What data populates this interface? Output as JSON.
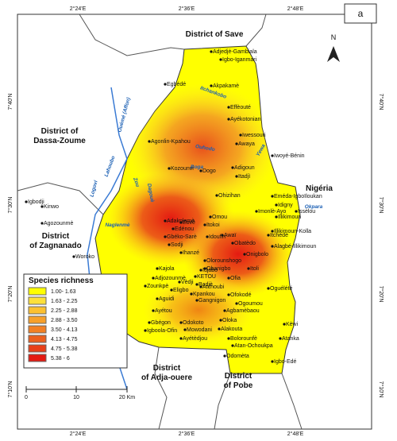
{
  "panel_label": "a",
  "north": "N",
  "coords": {
    "top": [
      "2°24'E",
      "2°36'E",
      "2°48'E"
    ],
    "bottom": [
      "2°24'E",
      "2°36'E",
      "2°48'E"
    ],
    "left": [
      "7°40'N",
      "7°30'N",
      "7°20'N",
      "7°10'N"
    ],
    "right": [
      "7°40'N",
      "7°30'N",
      "7°20'N",
      "7°10'N"
    ]
  },
  "districts": {
    "save": "District of Save",
    "dassa": [
      "District  of",
      "Dassa-Zoume"
    ],
    "zagnanado": [
      "District",
      "of Zagnanado"
    ],
    "adja": [
      "District",
      "of Adja-ouere"
    ],
    "pobe": [
      "District",
      "of Pobe"
    ]
  },
  "country": "Nigéria",
  "rivers": [
    "Ouémé (Affon)",
    "Itchankobo",
    "Ouhodo",
    "Boga",
    "Lahoubo",
    "Zou",
    "Logovi",
    "Dagouè",
    "Naglenmè",
    "Yewa",
    "Okpara"
  ],
  "villages": [
    "Adjedjè-Gambiala",
    "Igbo-Iganmari",
    "Egbédé",
    "Akpakamè",
    "Effèouté",
    "Ayékotonian",
    "Iwessouri",
    "Awaya",
    "Agonlin-Kpahou",
    "Kozounvi",
    "Dogo",
    "Adigoun",
    "Itadjì",
    "Iwoyé-Bénin",
    "Ohizihan",
    "Eméda-Igboïloukan",
    "Idigny",
    "Issèlou",
    "Igbodji",
    "Kinwo",
    "Agozounmè",
    "Adakplamè",
    "Eovè",
    "Edénou",
    "Omou",
    "Itokoi",
    "Imonlè-Ayo",
    "Illikimoun",
    "Illikimoun-Kolla",
    "Gbéko-Sarè",
    "Sodji",
    "Idoufin",
    "Awaï",
    "Obatèdo",
    "Itchèdè",
    "Alagbé-Illikimoun",
    "Ihanzé",
    "Onigbolo",
    "Woroko",
    "Olorounshogo",
    "Obanigbo",
    "Itoli",
    "Ofia",
    "Kajola",
    "Idjabo",
    "Adjozounmè",
    "KETOU",
    "Badjè",
    "Oguélété",
    "Zounkpè",
    "Eligbo",
    "Vèdji",
    "Atchoubi",
    "Kpankou",
    "Gangnigon",
    "Ofokodé",
    "Ogoumou",
    "Aguidi",
    "Agbamèbaou",
    "Ayétou",
    "Gbégon",
    "Odokoto",
    "Oloka",
    "Igboola-Ofin",
    "Mowodani",
    "Alakouta",
    "Ayétèdjou",
    "Kèwi",
    "Atanka",
    "Bolorounfè",
    "Atan-Ochoukpa",
    "Igbo-Edé",
    "Odomèta"
  ],
  "legend": {
    "title": "Species richness",
    "items": [
      {
        "label": "1.00- 1.63",
        "color": "#ffff00"
      },
      {
        "label": "1.63 - 2.25",
        "color": "#fde03a"
      },
      {
        "label": "2.25 - 2.88",
        "color": "#fcc030"
      },
      {
        "label": "2.88 - 3.50",
        "color": "#f7a02a"
      },
      {
        "label": "3.50 - 4.13",
        "color": "#f28024"
      },
      {
        "label": "4.13 - 4.75",
        "color": "#ec601e"
      },
      {
        "label": "4.75 - 5.38",
        "color": "#e84018"
      },
      {
        "label": "5.38 - 6",
        "color": "#e41a12"
      }
    ]
  },
  "scale": [
    "0",
    "10",
    "20 Km"
  ]
}
